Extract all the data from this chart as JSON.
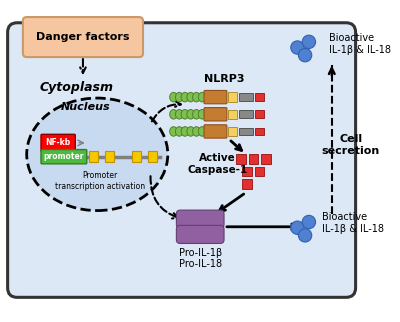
{
  "fig_width": 4.0,
  "fig_height": 3.22,
  "bg_color": "#ffffff",
  "cell_bg": "#dce8f5",
  "cell_border": "#333333",
  "nucleus_bg": "#c8daf0",
  "danger_box_color": "#f5c6a0",
  "danger_text": "Danger factors",
  "cytoplasm_text": "Cytoplasm",
  "nucleus_text": "Nucleus",
  "cell_secretion_text": "Cell\nsecretion",
  "nlrp3_text": "NLRP3",
  "active_caspase_text": "Active\nCaspase-1",
  "pro_il_text": "Pro-IL-1β\nPro-IL-18",
  "bioactive_top_text": "Bioactive\nIL-1β & IL-18",
  "bioactive_bottom_text": "Bioactive\nIL-1β & IL-18",
  "promoter_text": "promoter",
  "nfkb_text": "NF-kb",
  "promoter_activation_text": "Promoter\ntranscription activation",
  "green_coil_color": "#7dc050",
  "brown_rect_color": "#c47c30",
  "yellow_rect_color": "#f5d060",
  "gray_rect_color": "#888888",
  "red_rect_color": "#e03030",
  "purple_color": "#9060a0",
  "blue_dot_color": "#5080d0"
}
